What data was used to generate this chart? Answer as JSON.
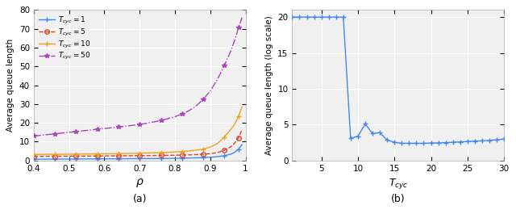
{
  "legend_labels": [
    "$T_{cyc} = 1$",
    "$T_{cyc} = 5$",
    "$T_{cyc} = 10$",
    "$T_{cyc} = 50$"
  ],
  "color_blue": "#4488EE",
  "color_red": "#DD4422",
  "color_orange": "#EEA020",
  "color_purple": "#AA44BB",
  "left_ylim": [
    0,
    80
  ],
  "left_xlim": [
    0.4,
    1.0
  ],
  "right_ylim": [
    0,
    21
  ],
  "right_xlim": [
    1,
    30
  ],
  "rho_vals": [
    0.4,
    0.42,
    0.44,
    0.46,
    0.48,
    0.5,
    0.52,
    0.54,
    0.56,
    0.58,
    0.6,
    0.62,
    0.64,
    0.66,
    0.68,
    0.7,
    0.72,
    0.74,
    0.76,
    0.78,
    0.8,
    0.82,
    0.84,
    0.86,
    0.88,
    0.9,
    0.92,
    0.94,
    0.96,
    0.97,
    0.98,
    0.99
  ],
  "q1": [
    0.7,
    0.72,
    0.74,
    0.76,
    0.78,
    0.8,
    0.82,
    0.84,
    0.86,
    0.88,
    0.9,
    0.92,
    0.94,
    0.96,
    0.98,
    1.0,
    1.02,
    1.05,
    1.08,
    1.12,
    1.18,
    1.25,
    1.33,
    1.43,
    1.56,
    1.75,
    2.05,
    2.55,
    3.5,
    4.5,
    6.0,
    8.5
  ],
  "q5": [
    2.2,
    2.22,
    2.24,
    2.26,
    2.28,
    2.3,
    2.32,
    2.35,
    2.37,
    2.4,
    2.43,
    2.46,
    2.49,
    2.52,
    2.55,
    2.58,
    2.62,
    2.66,
    2.7,
    2.75,
    2.82,
    2.9,
    3.0,
    3.15,
    3.35,
    3.65,
    4.2,
    5.5,
    7.5,
    9.5,
    12.0,
    16.5
  ],
  "q10": [
    3.2,
    3.25,
    3.28,
    3.3,
    3.33,
    3.36,
    3.4,
    3.44,
    3.48,
    3.52,
    3.57,
    3.62,
    3.68,
    3.75,
    3.82,
    3.9,
    4.0,
    4.1,
    4.22,
    4.36,
    4.55,
    4.78,
    5.08,
    5.5,
    6.1,
    7.1,
    9.0,
    12.5,
    17.0,
    19.5,
    23.5,
    28.5
  ],
  "q50": [
    13.0,
    13.4,
    13.8,
    14.2,
    14.6,
    15.0,
    15.4,
    15.8,
    16.2,
    16.6,
    17.0,
    17.4,
    17.8,
    18.2,
    18.7,
    19.2,
    19.8,
    20.5,
    21.3,
    22.2,
    23.3,
    24.7,
    26.5,
    29.0,
    32.5,
    37.0,
    43.0,
    50.5,
    59.0,
    64.5,
    70.5,
    76.0
  ],
  "tcyc_vals": [
    1,
    2,
    3,
    4,
    5,
    6,
    7,
    8,
    9,
    10,
    11,
    12,
    13,
    14,
    15,
    16,
    17,
    18,
    19,
    20,
    21,
    22,
    23,
    24,
    25,
    26,
    27,
    28,
    29,
    30
  ],
  "qb": [
    20.0,
    20.0,
    20.0,
    20.0,
    20.0,
    20.0,
    20.0,
    20.0,
    3.1,
    3.4,
    5.1,
    3.75,
    3.9,
    2.85,
    2.55,
    2.4,
    2.4,
    2.4,
    2.4,
    2.45,
    2.45,
    2.5,
    2.55,
    2.6,
    2.65,
    2.7,
    2.75,
    2.8,
    2.9,
    3.0
  ],
  "ax_bg": "#F0F0F0",
  "grid_color": "#FFFFFF",
  "left_xticks": [
    0.4,
    0.5,
    0.6,
    0.7,
    0.8,
    0.9,
    1.0
  ],
  "left_yticks": [
    0,
    10,
    20,
    30,
    40,
    50,
    60,
    70,
    80
  ],
  "right_xticks": [
    5,
    10,
    15,
    20,
    25,
    30
  ],
  "right_yticks": [
    0,
    5,
    10,
    15,
    20
  ]
}
